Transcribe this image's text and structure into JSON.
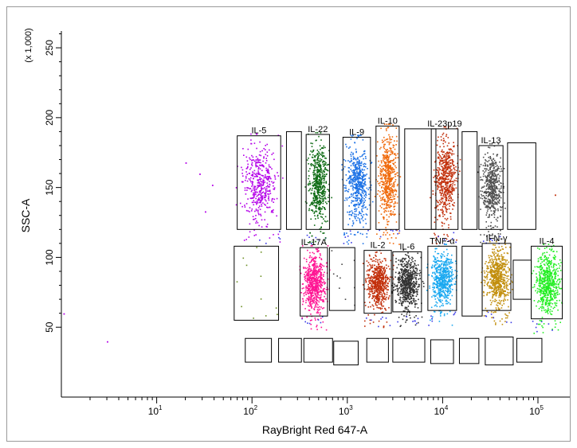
{
  "chart_data": {
    "type": "scatter",
    "xlabel": "RayBright Red 647-A",
    "ylabel": "SSC-A",
    "y_multiplier_label": "(x 1,000)",
    "x_scale": "log",
    "xlim": [
      1.0,
      100000.0
    ],
    "ylim": [
      0,
      262
    ],
    "y_ticks": [
      "50",
      "100",
      "150",
      "200",
      "250"
    ],
    "x_ticks": [
      {
        "base": "10",
        "exp": "1",
        "value": 10
      },
      {
        "base": "10",
        "exp": "2",
        "value": 100
      },
      {
        "base": "10",
        "exp": "3",
        "value": 1000
      },
      {
        "base": "10",
        "exp": "4",
        "value": 10000
      },
      {
        "base": "10",
        "exp": "5",
        "value": 100000
      }
    ],
    "grid": false,
    "gates": [
      {
        "label": "IL-5",
        "x": [
          70,
          200
        ],
        "y": [
          120,
          187
        ],
        "color": "#b400e8",
        "n": 420
      },
      {
        "label": "",
        "x": [
          230,
          330
        ],
        "y": [
          120,
          190
        ],
        "color": "",
        "n": 0
      },
      {
        "label": "IL-22",
        "x": [
          370,
          650
        ],
        "y": [
          120,
          188
        ],
        "color": "#0e6b14",
        "n": 520
      },
      {
        "label": "IL-9",
        "x": [
          900,
          1750
        ],
        "y": [
          120,
          186
        ],
        "color": "#1e73e6",
        "n": 540
      },
      {
        "label": "IL-10",
        "x": [
          2000,
          3500
        ],
        "y": [
          120,
          194
        ],
        "color": "#f06a0c",
        "n": 560
      },
      {
        "label": "",
        "x": [
          4000,
          8500
        ],
        "y": [
          120,
          192
        ],
        "color": "",
        "n": 0
      },
      {
        "label": "IL-23p19",
        "x": [
          7600,
          14500
        ],
        "y": [
          120,
          192
        ],
        "color": "#c2300c",
        "n": 560
      },
      {
        "label": "",
        "x": [
          16000,
          23000
        ],
        "y": [
          120,
          190
        ],
        "color": "",
        "n": 0
      },
      {
        "label": "IL-13",
        "x": [
          24000,
          43000
        ],
        "y": [
          120,
          180
        ],
        "color": "#505050",
        "n": 520
      },
      {
        "label": "",
        "x": [
          48000,
          95000
        ],
        "y": [
          120,
          182
        ],
        "color": "",
        "n": 0
      },
      {
        "label": "",
        "x": [
          65,
          190
        ],
        "y": [
          55,
          108
        ],
        "color": "#6b8e23",
        "n": 12
      },
      {
        "label": "IL-17A",
        "x": [
          320,
          620
        ],
        "y": [
          58,
          107
        ],
        "color": "#ff1493",
        "n": 620
      },
      {
        "label": "",
        "x": [
          650,
          1200
        ],
        "y": [
          62,
          107
        ],
        "color": "#4a4a4a",
        "n": 10
      },
      {
        "label": "IL-2",
        "x": [
          1500,
          2900
        ],
        "y": [
          60,
          105
        ],
        "color": "#c2300c",
        "n": 580
      },
      {
        "label": "IL-6",
        "x": [
          3000,
          6000
        ],
        "y": [
          61,
          104
        ],
        "color": "#333333",
        "n": 640
      },
      {
        "label": "TNF-α",
        "x": [
          7000,
          14000
        ],
        "y": [
          62,
          108
        ],
        "color": "#19a8f0",
        "n": 560
      },
      {
        "label": "",
        "x": [
          16000,
          26000
        ],
        "y": [
          58,
          108
        ],
        "color": "",
        "n": 0
      },
      {
        "label": "IFN-γ",
        "x": [
          26000,
          52000
        ],
        "y": [
          62,
          110
        ],
        "color": "#c28f0e",
        "n": 620
      },
      {
        "label": "",
        "x": [
          55000,
          85000
        ],
        "y": [
          70,
          98
        ],
        "color": "",
        "n": 0
      },
      {
        "label": "IL-4",
        "x": [
          85000,
          180000
        ],
        "y": [
          56,
          108
        ],
        "color": "#22ee22",
        "n": 580
      }
    ],
    "bottom_gates": [
      {
        "x": [
          85,
          160
        ],
        "y": [
          25,
          42
        ]
      },
      {
        "x": [
          190,
          330
        ],
        "y": [
          25,
          42
        ]
      },
      {
        "x": [
          350,
          700
        ],
        "y": [
          25,
          42
        ]
      },
      {
        "x": [
          720,
          1300
        ],
        "y": [
          23,
          40
        ]
      },
      {
        "x": [
          1600,
          2700
        ],
        "y": [
          25,
          42
        ]
      },
      {
        "x": [
          3000,
          6500
        ],
        "y": [
          25,
          42
        ]
      },
      {
        "x": [
          7500,
          13000
        ],
        "y": [
          24,
          41
        ]
      },
      {
        "x": [
          15000,
          24000
        ],
        "y": [
          24,
          42
        ]
      },
      {
        "x": [
          28000,
          55000
        ],
        "y": [
          23,
          43
        ]
      },
      {
        "x": [
          60000,
          110000
        ],
        "y": [
          25,
          42
        ]
      }
    ]
  }
}
